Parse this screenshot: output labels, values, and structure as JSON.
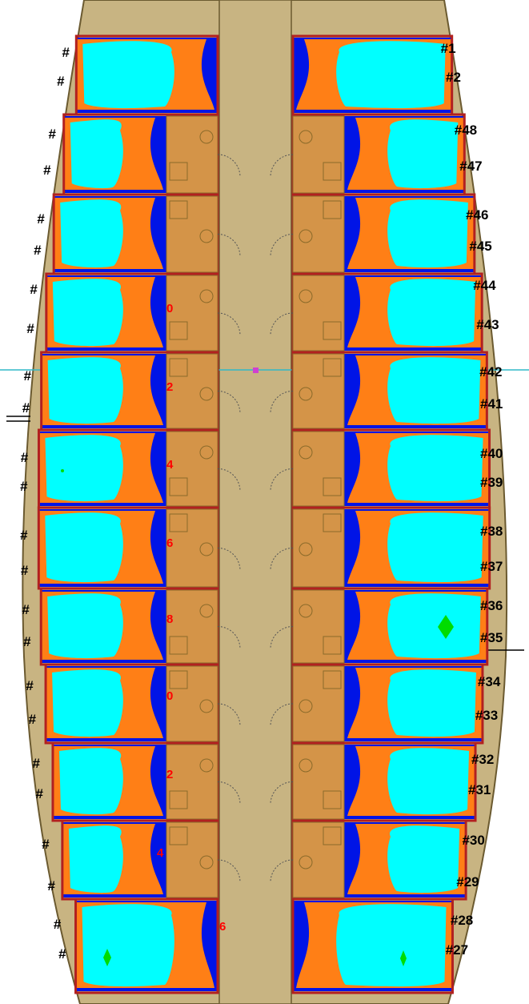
{
  "colors": {
    "background": "#ffffff",
    "hull": "#c8b482",
    "corridor": "#c8b482",
    "bathroom": "#d49448",
    "zone_cyan": "#00ffff",
    "zone_orange": "#ff7f16",
    "zone_blue": "#0014e6",
    "zone_red": "#ff0000",
    "zone_green": "#00dc00",
    "wall": "#b22020",
    "fixture_line": "#8a6a2a",
    "guide_line": "#30b8c8",
    "marker": "#d040d0"
  },
  "right_labels": [
    "#1",
    "#2",
    "#48",
    "#47",
    "#46",
    "#45",
    "#44",
    "#43",
    "#42",
    "#41",
    "#40",
    "#39",
    "#38",
    "#37",
    "#36",
    "#35",
    "#34",
    "#33",
    "#32",
    "#31",
    "#30",
    "#29",
    "#28",
    "#27"
  ],
  "left_labels": [
    "#",
    "#",
    "#",
    "#",
    "#",
    "#",
    "#",
    "#",
    "#",
    "#",
    "#",
    "#",
    "#",
    "#",
    "#",
    "#",
    "#",
    "#",
    "#",
    "#",
    "#",
    "#",
    "#",
    "#"
  ],
  "red_numbers": [
    "0",
    "2",
    "4",
    "6",
    "8",
    "0",
    "2",
    "4",
    "6"
  ]
}
